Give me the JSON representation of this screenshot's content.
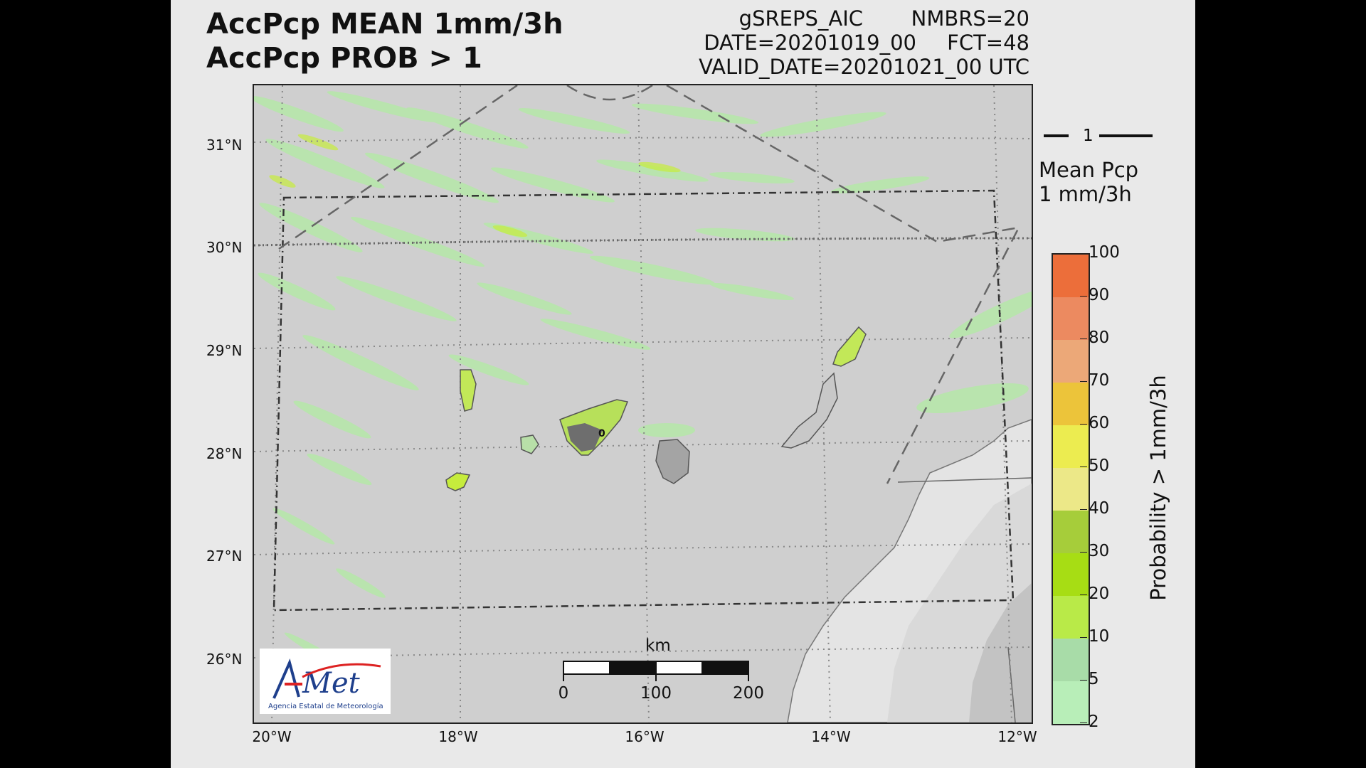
{
  "titles": {
    "line1": "AccPcp MEAN 1mm/3h",
    "line2": "AccPcp PROB > 1"
  },
  "meta": {
    "model": "gSREPS_AIC",
    "members": "NMBRS=20",
    "date": "DATE=20201019_00",
    "forecast": "FCT=48",
    "valid": "VALID_DATE=20201021_00 UTC"
  },
  "map": {
    "lat_labels": [
      "31°N",
      "30°N",
      "29°N",
      "28°N",
      "27°N",
      "26°N"
    ],
    "lon_labels": [
      "20°W",
      "18°W",
      "16°W",
      "14°W",
      "12°W"
    ],
    "island_contour_label": "0",
    "colors": {
      "sea": "#cfcfcf",
      "land_light": "#e6e6e6",
      "land_dark": "#9a9a9a",
      "precip_green": "#b5e8a8",
      "precip_lime": "#c6ec3c"
    }
  },
  "scalebar": {
    "unit": "km",
    "ticks": [
      "0",
      "100",
      "200"
    ]
  },
  "logo": {
    "name": "AEMet",
    "subtitle": "Agencia Estatal de Meteorología"
  },
  "legend": {
    "contour_value": "1",
    "mean_line1": "Mean Pcp",
    "mean_line2": "1 mm/3h",
    "colorbar_title": "Probability > 1mm/3h",
    "ticks": [
      "2",
      "5",
      "10",
      "20",
      "30",
      "40",
      "50",
      "60",
      "70",
      "80",
      "90",
      "100"
    ],
    "colors": [
      "#b8eeb8",
      "#a8dca8",
      "#b9ea48",
      "#a7dd14",
      "#a6cd3a",
      "#ece888",
      "#ecec50",
      "#ecc43a",
      "#eca878",
      "#ec8a60",
      "#ec6e3a"
    ]
  }
}
